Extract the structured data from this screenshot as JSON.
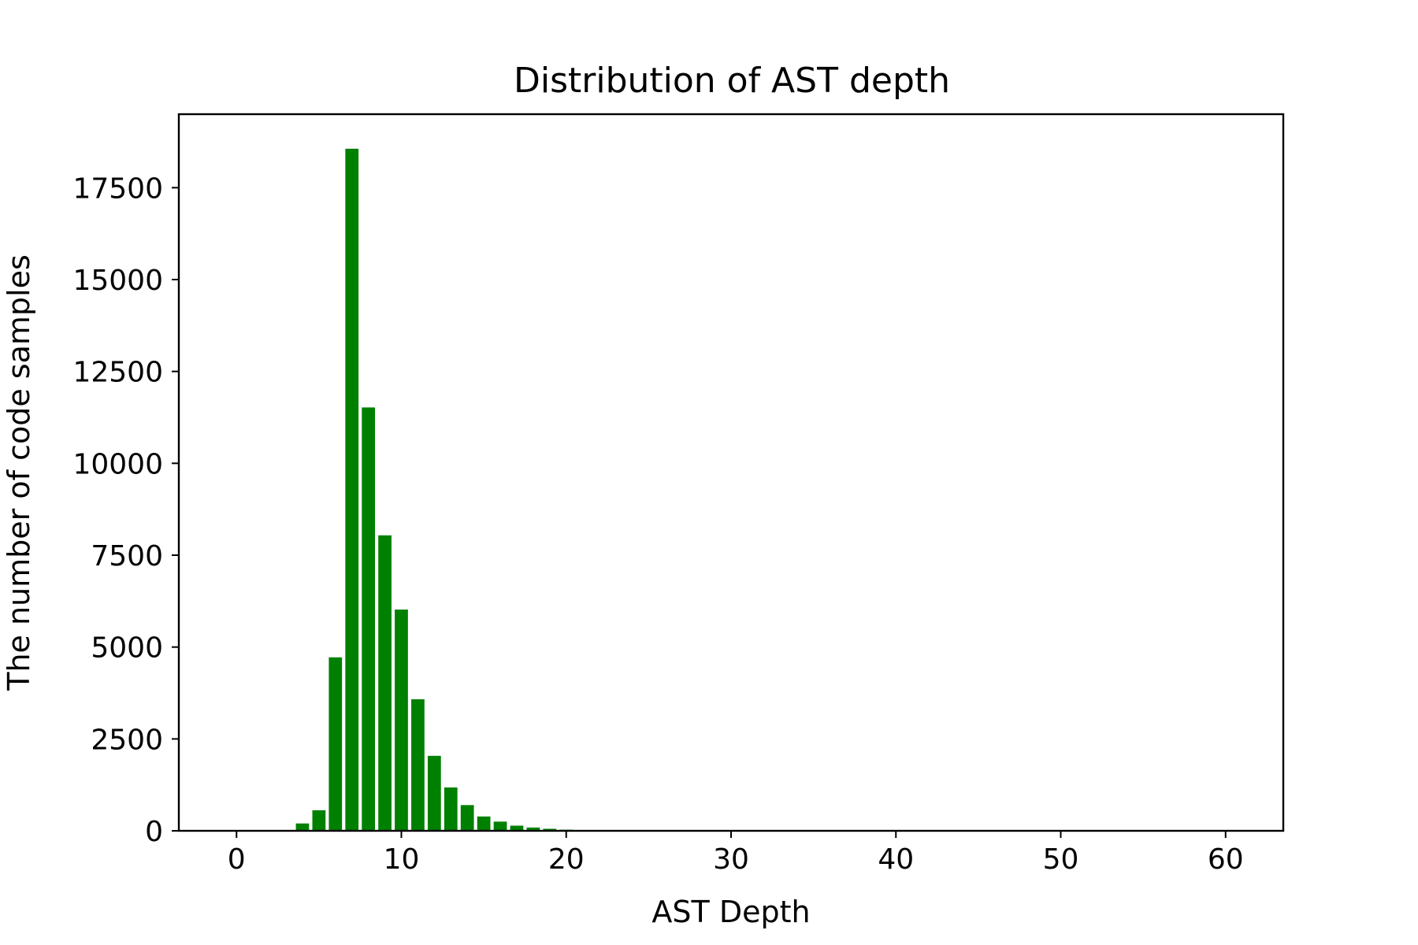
{
  "chart_data": {
    "type": "bar",
    "title": "Distribution of AST depth",
    "xlabel": "AST Depth",
    "ylabel": "The number of code samples",
    "x": [
      4,
      5,
      6,
      7,
      8,
      9,
      10,
      11,
      12,
      13,
      14,
      15,
      16,
      17,
      18,
      19,
      20,
      21,
      22,
      23
    ],
    "values": [
      200,
      560,
      4720,
      18560,
      11520,
      8040,
      6020,
      3580,
      2040,
      1180,
      700,
      390,
      250,
      140,
      90,
      55,
      30,
      20,
      12,
      8
    ],
    "xlim": [
      -3.5,
      63.5
    ],
    "ylim": [
      0,
      19500
    ],
    "xticks": [
      0,
      10,
      20,
      30,
      40,
      50,
      60
    ],
    "yticks": [
      0,
      2500,
      5000,
      7500,
      10000,
      12500,
      15000,
      17500
    ],
    "grid": false,
    "bar_color": "#008000"
  }
}
